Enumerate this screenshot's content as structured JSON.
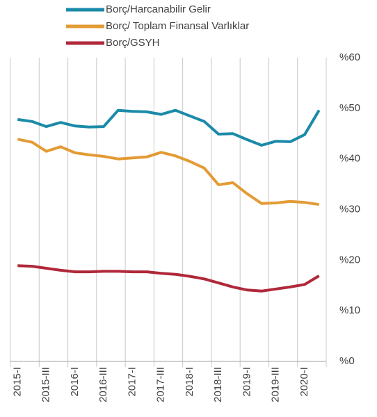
{
  "chart_data": {
    "type": "line",
    "categories": [
      "2015-I",
      null,
      "2015-III",
      null,
      "2016-I",
      null,
      "2016-III",
      null,
      "2017-I",
      null,
      "2017-III",
      null,
      "2018-I",
      null,
      "2018-III",
      null,
      "2019-I",
      null,
      "2019-III",
      null,
      "2020-I",
      null
    ],
    "series": [
      {
        "name": "Borç/Harcanabilir Gelir",
        "color": "#1b8aa8",
        "values": [
          47.8,
          47.4,
          46.4,
          47.2,
          46.5,
          46.3,
          46.4,
          49.6,
          49.4,
          49.3,
          48.8,
          49.6,
          48.5,
          47.4,
          44.9,
          45.0,
          43.8,
          42.7,
          43.5,
          43.4,
          44.8,
          49.6
        ]
      },
      {
        "name": "Borç/ Toplam Finansal Varlıklar",
        "color": "#e39b35",
        "values": [
          43.9,
          43.3,
          41.5,
          42.4,
          41.2,
          40.8,
          40.5,
          40.0,
          40.2,
          40.4,
          41.3,
          40.6,
          39.5,
          38.2,
          34.9,
          35.3,
          33.1,
          31.2,
          31.3,
          31.6,
          31.4,
          31.0
        ]
      },
      {
        "name": "Borç/GSYH",
        "color": "#b0283a",
        "values": [
          18.9,
          18.8,
          18.4,
          18.0,
          17.7,
          17.7,
          17.8,
          17.8,
          17.7,
          17.7,
          17.4,
          17.2,
          16.8,
          16.3,
          15.5,
          14.7,
          14.1,
          13.9,
          14.3,
          14.7,
          15.2,
          16.9
        ]
      }
    ],
    "ylim": [
      0,
      60
    ],
    "yticks": [
      {
        "value": 0,
        "label": "%0"
      },
      {
        "value": 10,
        "label": "%10"
      },
      {
        "value": 20,
        "label": "%20"
      },
      {
        "value": 30,
        "label": "%30"
      },
      {
        "value": 40,
        "label": "%40"
      },
      {
        "value": 50,
        "label": "%50"
      },
      {
        "value": 60,
        "label": "%60"
      }
    ]
  }
}
